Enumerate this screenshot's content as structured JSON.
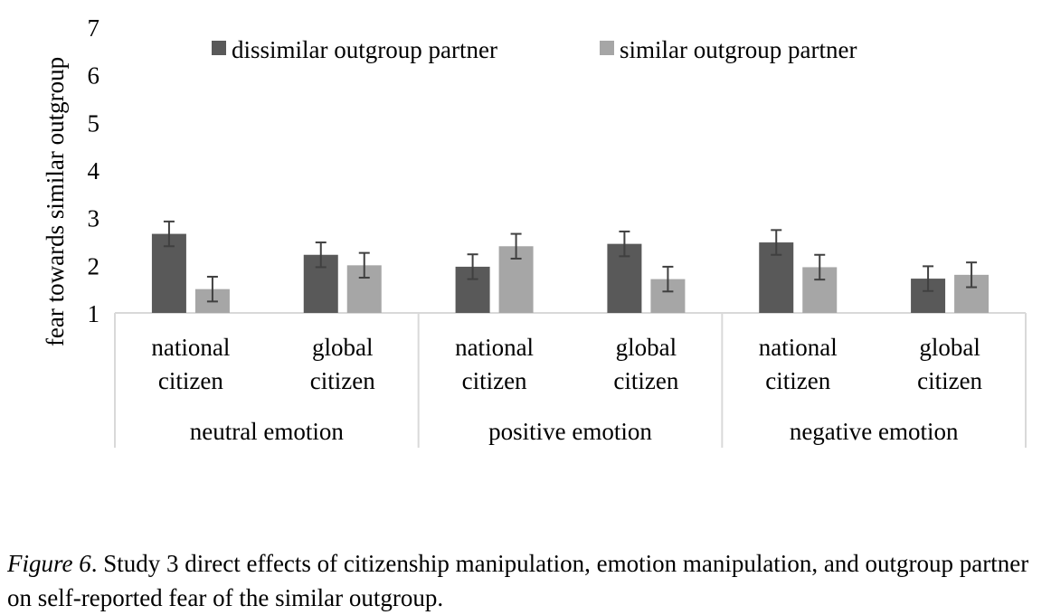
{
  "chart_data": {
    "type": "bar",
    "ylabel": "fear towards similar outgroup",
    "ylim": [
      1,
      7
    ],
    "yticks": [
      "1",
      "2",
      "3",
      "4",
      "5",
      "6",
      "7"
    ],
    "grid": false,
    "legend_position": "top",
    "groups": [
      {
        "label": "neutral emotion",
        "categories": [
          "national citizen",
          "global citizen"
        ]
      },
      {
        "label": "positive emotion",
        "categories": [
          "national citizen",
          "global citizen"
        ]
      },
      {
        "label": "negative emotion",
        "categories": [
          "national citizen",
          "global citizen"
        ]
      }
    ],
    "category_lines": [
      [
        "national",
        "citizen"
      ],
      [
        "global",
        "citizen"
      ]
    ],
    "series": [
      {
        "name": "dissimilar outgroup partner",
        "color": "#595959",
        "values": [
          2.66,
          2.22,
          1.97,
          2.45,
          2.48,
          1.72
        ],
        "errors": [
          0.26,
          0.26,
          0.26,
          0.26,
          0.26,
          0.26
        ]
      },
      {
        "name": "similar outgroup partner",
        "color": "#a6a6a6",
        "values": [
          1.5,
          2.0,
          2.4,
          1.71,
          1.96,
          1.8
        ],
        "errors": [
          0.26,
          0.26,
          0.26,
          0.26,
          0.26,
          0.26
        ]
      }
    ]
  },
  "caption": {
    "figure_label": "Figure 6",
    "text": ". Study 3 direct effects of citizenship manipulation, emotion manipulation, and outgroup partner on self-reported fear of the similar outgroup."
  }
}
